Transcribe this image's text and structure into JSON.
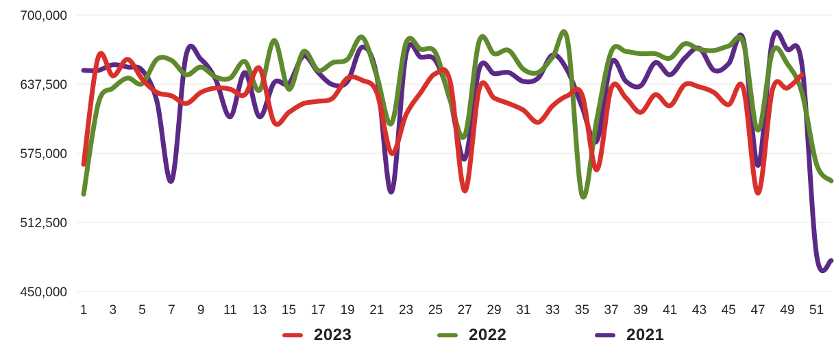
{
  "chart_data": {
    "type": "line",
    "title": "",
    "xlabel": "",
    "ylabel": "",
    "ylim": [
      450000,
      700000
    ],
    "yticks": [
      "450,000",
      "512,500",
      "575,000",
      "637,500",
      "700,000"
    ],
    "ytick_values": [
      450000,
      512500,
      575000,
      637500,
      700000
    ],
    "x": [
      1,
      2,
      3,
      4,
      5,
      6,
      7,
      8,
      9,
      10,
      11,
      12,
      13,
      14,
      15,
      16,
      17,
      18,
      19,
      20,
      21,
      22,
      23,
      24,
      25,
      26,
      27,
      28,
      29,
      30,
      31,
      32,
      33,
      34,
      35,
      36,
      37,
      38,
      39,
      40,
      41,
      42,
      43,
      44,
      45,
      46,
      47,
      48,
      49,
      50,
      51,
      52
    ],
    "xticks": [
      "1",
      "3",
      "5",
      "7",
      "9",
      "11",
      "13",
      "15",
      "17",
      "19",
      "21",
      "23",
      "25",
      "27",
      "29",
      "31",
      "33",
      "35",
      "37",
      "39",
      "41",
      "43",
      "45",
      "47",
      "49",
      "51"
    ],
    "grid": true,
    "legend_position": "bottom",
    "series": [
      {
        "name": "2021",
        "color": "#5b2a86",
        "values": [
          650000,
          650000,
          655000,
          653000,
          650000,
          622000,
          550000,
          664000,
          660000,
          642000,
          608000,
          648000,
          608000,
          639000,
          638000,
          663000,
          648000,
          637000,
          640000,
          671000,
          645000,
          540000,
          665000,
          662000,
          659000,
          624000,
          570000,
          652000,
          647000,
          648000,
          640000,
          643000,
          664000,
          650000,
          617000,
          586000,
          657000,
          640000,
          636000,
          657000,
          646000,
          661000,
          670000,
          650000,
          656000,
          678000,
          564000,
          678000,
          669000,
          655000,
          483000,
          478000
        ]
      },
      {
        "name": "2022",
        "color": "#5f8a2e",
        "values": [
          538000,
          620000,
          634000,
          643000,
          638000,
          660000,
          659000,
          646000,
          653000,
          644000,
          643000,
          658000,
          632000,
          677000,
          633000,
          667000,
          650000,
          657000,
          660000,
          680000,
          645000,
          602000,
          675000,
          669000,
          666000,
          623000,
          591000,
          677000,
          665000,
          668000,
          651000,
          648000,
          662000,
          678000,
          537000,
          605000,
          667000,
          667000,
          665000,
          665000,
          661000,
          674000,
          669000,
          668000,
          672000,
          675000,
          596000,
          667000,
          656000,
          630000,
          565000,
          550000
        ]
      },
      {
        "name": "2023",
        "color": "#d8312c",
        "values": [
          565000,
          662000,
          645000,
          660000,
          642000,
          630000,
          627000,
          620000,
          630000,
          634000,
          633000,
          628000,
          652000,
          603000,
          612000,
          620000,
          622000,
          625000,
          643000,
          641000,
          630000,
          575000,
          610000,
          630000,
          647000,
          640000,
          541000,
          634000,
          625000,
          620000,
          614000,
          603000,
          618000,
          627000,
          628000,
          560000,
          634000,
          625000,
          612000,
          628000,
          618000,
          637000,
          635000,
          630000,
          619000,
          634000,
          539000,
          633000,
          634000,
          646000,
          null,
          null
        ]
      }
    ]
  },
  "legend_order": [
    "2023",
    "2022",
    "2021"
  ]
}
